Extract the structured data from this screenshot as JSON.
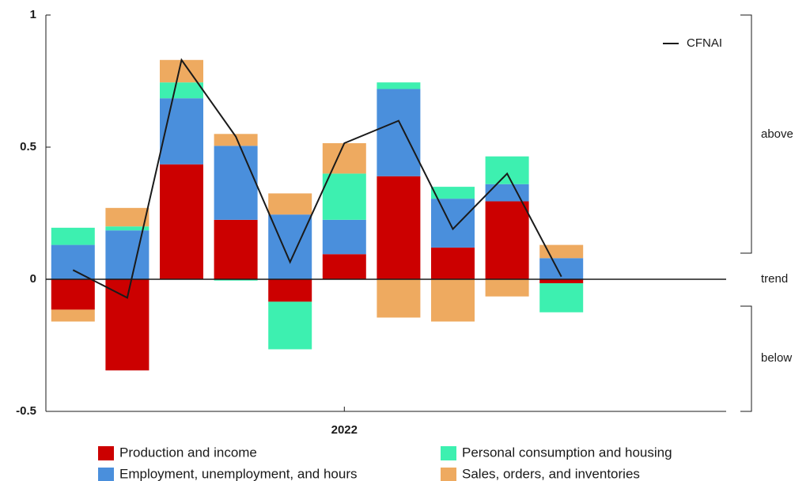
{
  "chart_data": {
    "type": "bar",
    "stacked": true,
    "categories": [
      null,
      null,
      null,
      null,
      null,
      "2022",
      null,
      null,
      null,
      null
    ],
    "series": [
      {
        "name": "Production and income",
        "color": "#cc0000",
        "values": [
          -0.115,
          -0.345,
          0.435,
          0.225,
          -0.085,
          0.095,
          0.39,
          0.12,
          0.295,
          -0.015
        ]
      },
      {
        "name": "Employment, unemployment, and hours",
        "color": "#4a8fdc",
        "values": [
          0.13,
          0.185,
          0.25,
          0.28,
          0.245,
          0.13,
          0.33,
          0.185,
          0.065,
          0.08
        ]
      },
      {
        "name": "Personal consumption and housing",
        "color": "#3df0b0",
        "values": [
          0.065,
          0.015,
          0.06,
          -0.005,
          -0.18,
          0.175,
          0.025,
          0.045,
          0.105,
          -0.11
        ]
      },
      {
        "name": "Sales, orders, and inventories",
        "color": "#eeaa60",
        "values": [
          -0.045,
          0.07,
          0.085,
          0.045,
          0.08,
          0.115,
          -0.145,
          -0.16,
          -0.065,
          0.05
        ]
      }
    ],
    "line_series": {
      "name": "CFNAI",
      "color": "#1a1a1a",
      "values": [
        0.035,
        -0.07,
        0.83,
        0.54,
        0.065,
        0.515,
        0.6,
        0.19,
        0.4,
        0.01
      ]
    },
    "ylim": [
      -0.5,
      1
    ],
    "yticks": [
      -0.5,
      0,
      0.5,
      1
    ],
    "annotations": [
      "above",
      "trend",
      "below"
    ]
  }
}
